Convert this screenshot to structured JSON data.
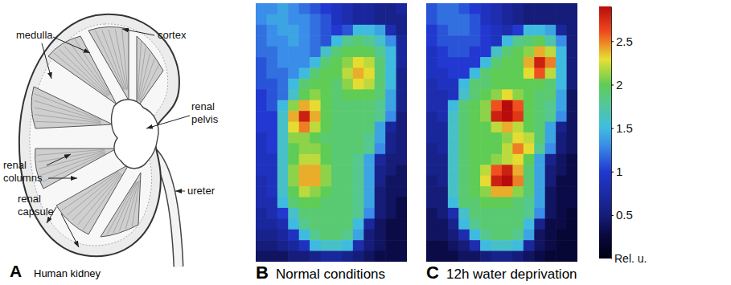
{
  "anatomy": {
    "caption": {
      "panel": "A",
      "title": "Human kidney"
    },
    "labels": [
      {
        "lines": [
          "medulla"
        ]
      },
      {
        "lines": [
          "cortex"
        ]
      },
      {
        "lines": [
          "renal",
          "pelvis"
        ]
      },
      {
        "lines": [
          "renal",
          "columns"
        ]
      },
      {
        "lines": [
          "renal",
          "capsule"
        ]
      },
      {
        "lines": [
          "ureter"
        ]
      }
    ]
  },
  "colorbar": {
    "range": [
      0,
      2.9
    ],
    "ticks": [
      0.5,
      1,
      1.5,
      2,
      2.5
    ],
    "label": "Rel. u."
  },
  "chart_data": [
    {
      "type": "heatmap",
      "panel": "B",
      "title": "Normal conditions",
      "tick_labels": false,
      "cells": [
        [
          1.3,
          1.3,
          1.4,
          1.3,
          1.2,
          1.1,
          1.0,
          0.9,
          0.8,
          0.7,
          0.7,
          0.6,
          0.6,
          0.7
        ],
        [
          1.3,
          1.4,
          1.4,
          1.3,
          1.3,
          1.2,
          1.1,
          0.9,
          0.8,
          0.7,
          0.7,
          0.6,
          0.6,
          0.6
        ],
        [
          1.2,
          1.3,
          1.4,
          1.4,
          1.3,
          1.2,
          1.1,
          1.0,
          1.1,
          1.5,
          1.5,
          1.4,
          0.8,
          0.6
        ],
        [
          1.2,
          1.3,
          1.3,
          1.4,
          1.3,
          1.2,
          1.1,
          1.5,
          1.8,
          1.9,
          1.8,
          1.6,
          1.3,
          0.7
        ],
        [
          1.2,
          1.2,
          1.3,
          1.3,
          1.3,
          1.2,
          1.6,
          1.9,
          2.0,
          2.0,
          2.0,
          1.8,
          1.5,
          0.7
        ],
        [
          1.1,
          1.2,
          1.3,
          1.3,
          1.3,
          1.5,
          1.9,
          2.0,
          2.1,
          2.3,
          2.2,
          1.9,
          1.5,
          0.7
        ],
        [
          1.1,
          1.2,
          1.2,
          1.3,
          1.5,
          1.9,
          2.0,
          2.0,
          2.2,
          2.4,
          2.3,
          1.9,
          1.5,
          0.6
        ],
        [
          1.1,
          1.1,
          1.2,
          1.5,
          1.9,
          2.0,
          2.0,
          1.9,
          2.1,
          2.3,
          2.2,
          1.9,
          1.5,
          0.6
        ],
        [
          1.0,
          1.1,
          1.2,
          1.6,
          2.0,
          2.1,
          2.0,
          1.9,
          2.0,
          2.0,
          2.0,
          1.9,
          1.4,
          0.6
        ],
        [
          1.0,
          1.1,
          1.5,
          2.1,
          2.4,
          2.3,
          2.0,
          1.9,
          1.9,
          1.9,
          1.9,
          1.8,
          1.4,
          0.6
        ],
        [
          1.0,
          1.0,
          1.6,
          2.4,
          2.8,
          2.4,
          2.0,
          1.9,
          1.9,
          1.9,
          1.9,
          1.8,
          1.3,
          0.5
        ],
        [
          1.0,
          1.0,
          1.6,
          2.3,
          2.5,
          2.2,
          2.0,
          1.9,
          1.9,
          1.9,
          1.9,
          1.4,
          0.7,
          0.5
        ],
        [
          0.9,
          1.0,
          1.6,
          2.1,
          2.1,
          2.0,
          1.9,
          1.9,
          1.9,
          1.9,
          1.8,
          1.4,
          0.6,
          0.5
        ],
        [
          0.9,
          1.0,
          1.6,
          2.0,
          2.1,
          2.1,
          2.0,
          1.9,
          1.9,
          1.9,
          1.8,
          1.3,
          0.6,
          0.5
        ],
        [
          0.9,
          0.9,
          1.6,
          2.0,
          2.2,
          2.2,
          2.0,
          1.9,
          1.9,
          1.8,
          1.4,
          0.7,
          0.5,
          0.5
        ],
        [
          0.9,
          0.9,
          1.6,
          2.1,
          2.4,
          2.4,
          2.1,
          1.9,
          1.9,
          1.8,
          1.4,
          0.6,
          0.5,
          0.4
        ],
        [
          0.8,
          0.9,
          1.6,
          2.1,
          2.4,
          2.4,
          2.1,
          1.9,
          1.9,
          1.8,
          1.4,
          0.6,
          0.4,
          0.4
        ],
        [
          0.8,
          0.9,
          1.6,
          2.0,
          2.2,
          2.1,
          2.0,
          1.9,
          1.9,
          1.8,
          1.4,
          0.5,
          0.4,
          0.4
        ],
        [
          0.8,
          0.8,
          1.5,
          1.9,
          2.0,
          2.0,
          1.9,
          1.9,
          1.9,
          1.8,
          1.4,
          0.5,
          0.4,
          0.3
        ],
        [
          0.7,
          0.8,
          1.0,
          1.6,
          1.9,
          1.9,
          1.9,
          1.9,
          1.9,
          1.8,
          1.3,
          0.5,
          0.4,
          0.3
        ],
        [
          0.7,
          0.7,
          0.8,
          1.5,
          1.8,
          1.9,
          1.9,
          1.9,
          1.9,
          1.5,
          0.7,
          0.4,
          0.3,
          0.3
        ],
        [
          0.6,
          0.6,
          0.7,
          0.9,
          1.5,
          1.8,
          1.9,
          1.9,
          1.8,
          1.4,
          0.5,
          0.4,
          0.3,
          0.3
        ],
        [
          0.5,
          0.5,
          0.6,
          0.7,
          0.9,
          1.5,
          1.6,
          1.6,
          1.5,
          0.8,
          0.5,
          0.4,
          0.3,
          0.3
        ],
        [
          0.4,
          0.4,
          0.4,
          0.5,
          0.5,
          0.6,
          0.7,
          0.7,
          0.6,
          0.5,
          0.4,
          0.3,
          0.3,
          0.3
        ]
      ]
    },
    {
      "type": "heatmap",
      "panel": "C",
      "title": "12h water deprivation",
      "tick_labels": false,
      "cells": [
        [
          1.1,
          1.2,
          1.2,
          1.1,
          1.0,
          0.9,
          0.8,
          0.7,
          0.6,
          0.5,
          0.5,
          0.5,
          0.5,
          0.5
        ],
        [
          1.1,
          1.2,
          1.2,
          1.2,
          1.1,
          0.9,
          0.8,
          0.7,
          0.6,
          0.5,
          0.5,
          0.5,
          0.5,
          0.5
        ],
        [
          1.0,
          1.1,
          1.2,
          1.2,
          1.1,
          1.0,
          0.9,
          0.8,
          1.0,
          1.5,
          1.5,
          1.4,
          0.7,
          0.5
        ],
        [
          1.0,
          1.1,
          1.1,
          1.1,
          1.1,
          1.0,
          0.9,
          1.5,
          1.8,
          1.9,
          2.0,
          1.7,
          1.3,
          0.5
        ],
        [
          0.9,
          1.0,
          1.1,
          1.1,
          1.0,
          1.0,
          1.6,
          1.9,
          2.0,
          2.1,
          2.4,
          2.2,
          1.5,
          0.5
        ],
        [
          0.9,
          1.0,
          1.0,
          1.0,
          1.0,
          1.5,
          1.9,
          2.0,
          2.0,
          2.4,
          2.8,
          2.5,
          1.5,
          0.5
        ],
        [
          0.9,
          0.9,
          1.0,
          1.0,
          1.5,
          1.9,
          2.0,
          2.0,
          2.0,
          2.3,
          2.6,
          2.2,
          1.5,
          0.5
        ],
        [
          0.8,
          0.9,
          0.9,
          1.5,
          1.9,
          1.9,
          2.0,
          2.0,
          2.0,
          2.0,
          2.0,
          1.9,
          1.5,
          0.5
        ],
        [
          0.8,
          0.8,
          0.9,
          1.6,
          1.9,
          2.0,
          2.1,
          2.3,
          2.1,
          2.0,
          1.9,
          1.9,
          1.4,
          0.4
        ],
        [
          0.8,
          0.8,
          1.5,
          1.9,
          2.0,
          2.1,
          2.6,
          2.9,
          2.6,
          2.0,
          1.9,
          1.8,
          1.4,
          0.4
        ],
        [
          0.7,
          0.8,
          1.6,
          1.9,
          2.0,
          2.1,
          2.8,
          2.9,
          2.7,
          2.0,
          1.9,
          1.8,
          1.3,
          0.4
        ],
        [
          0.7,
          0.7,
          1.6,
          1.9,
          2.0,
          2.0,
          2.2,
          2.4,
          2.2,
          2.0,
          1.9,
          1.4,
          0.6,
          0.4
        ],
        [
          0.7,
          0.7,
          1.6,
          1.9,
          2.0,
          2.0,
          2.0,
          2.1,
          2.3,
          2.2,
          1.9,
          1.4,
          0.5,
          0.4
        ],
        [
          0.6,
          0.7,
          1.6,
          1.9,
          2.0,
          2.0,
          2.0,
          2.2,
          2.5,
          2.3,
          1.8,
          1.3,
          0.5,
          0.4
        ],
        [
          0.6,
          0.6,
          1.6,
          1.9,
          2.0,
          2.0,
          2.1,
          2.2,
          2.3,
          2.0,
          1.4,
          0.6,
          0.4,
          0.3
        ],
        [
          0.6,
          0.6,
          1.6,
          1.9,
          2.0,
          2.2,
          2.6,
          2.8,
          2.4,
          1.9,
          1.4,
          0.5,
          0.4,
          0.3
        ],
        [
          0.5,
          0.6,
          1.6,
          1.9,
          2.0,
          2.3,
          2.8,
          2.9,
          2.5,
          1.9,
          1.4,
          0.5,
          0.3,
          0.3
        ],
        [
          0.5,
          0.5,
          1.6,
          1.9,
          2.0,
          2.1,
          2.4,
          2.4,
          2.1,
          1.9,
          1.4,
          0.4,
          0.3,
          0.3
        ],
        [
          0.5,
          0.5,
          1.5,
          1.9,
          1.9,
          2.0,
          2.0,
          2.0,
          1.9,
          1.8,
          1.4,
          0.4,
          0.3,
          0.3
        ],
        [
          0.4,
          0.5,
          0.8,
          1.6,
          1.9,
          1.9,
          1.9,
          1.9,
          1.9,
          1.8,
          1.3,
          0.4,
          0.3,
          0.2
        ],
        [
          0.4,
          0.4,
          0.6,
          1.5,
          1.8,
          1.9,
          1.9,
          1.9,
          1.9,
          1.5,
          0.6,
          0.3,
          0.3,
          0.2
        ],
        [
          0.4,
          0.4,
          0.5,
          0.8,
          1.5,
          1.8,
          1.9,
          1.9,
          1.8,
          1.4,
          0.4,
          0.3,
          0.2,
          0.2
        ],
        [
          0.3,
          0.3,
          0.4,
          0.5,
          0.8,
          1.5,
          1.6,
          1.6,
          1.5,
          0.7,
          0.4,
          0.3,
          0.2,
          0.2
        ],
        [
          0.3,
          0.3,
          0.3,
          0.4,
          0.4,
          0.5,
          0.6,
          0.6,
          0.5,
          0.4,
          0.3,
          0.2,
          0.2,
          0.2
        ]
      ]
    }
  ]
}
